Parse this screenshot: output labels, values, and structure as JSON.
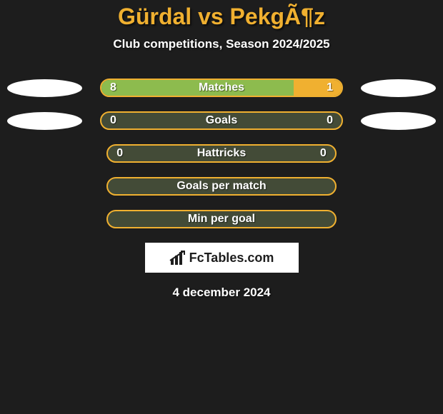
{
  "title": "Gürdal vs PekgÃ¶z",
  "subtitle": "Club competitions, Season 2024/2025",
  "date": "4 december 2024",
  "logo_text": "FcTables.com",
  "colors": {
    "background": "#1d1d1d",
    "accent": "#f0b030",
    "bar_bg": "#434b37",
    "left_fill": "#8dbb4e",
    "right_fill": "#f0b030",
    "text": "#ffffff",
    "avatar": "#ffffff"
  },
  "left_avatar_rows": [
    0,
    1
  ],
  "right_avatar_rows": [
    0,
    1
  ],
  "stats": [
    {
      "label": "Matches",
      "left_value": "8",
      "right_value": "1",
      "left_pct": 80,
      "right_pct": 20,
      "show_values": true
    },
    {
      "label": "Goals",
      "left_value": "0",
      "right_value": "0",
      "left_pct": 0,
      "right_pct": 0,
      "show_values": true
    },
    {
      "label": "Hattricks",
      "left_value": "0",
      "right_value": "0",
      "left_pct": 0,
      "right_pct": 0,
      "show_values": true
    },
    {
      "label": "Goals per match",
      "left_value": "",
      "right_value": "",
      "left_pct": 0,
      "right_pct": 0,
      "show_values": false
    },
    {
      "label": "Min per goal",
      "left_value": "",
      "right_value": "",
      "left_pct": 0,
      "right_pct": 0,
      "show_values": false
    }
  ]
}
